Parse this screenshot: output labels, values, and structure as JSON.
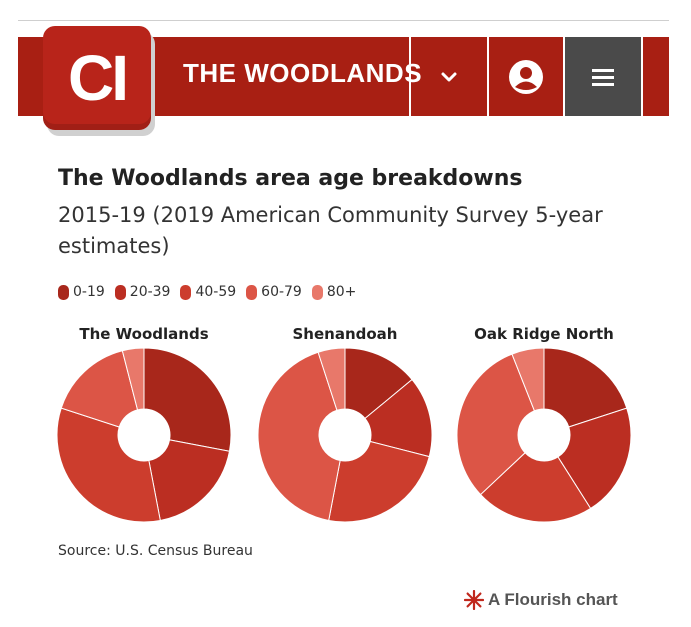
{
  "header": {
    "logo_text": "CI",
    "site_title": "THE WOODLANDS",
    "nav_color": "#a81f13"
  },
  "chart_data": {
    "type": "pie",
    "title": "The Woodlands area age breakdowns",
    "subtitle": "2015-19 (2019 American Community Survey 5-year estimates)",
    "legend": [
      {
        "label": "0-19",
        "color": "#a8271b"
      },
      {
        "label": "20-39",
        "color": "#bb2e22"
      },
      {
        "label": "40-59",
        "color": "#cc3d2d"
      },
      {
        "label": "60-79",
        "color": "#dc5546"
      },
      {
        "label": "80+",
        "color": "#e8786a"
      }
    ],
    "charts": [
      {
        "name": "The Woodlands",
        "values": [
          28,
          19,
          33,
          16,
          4
        ]
      },
      {
        "name": "Shenandoah",
        "values": [
          14,
          15,
          24,
          42,
          5
        ]
      },
      {
        "name": "Oak Ridge North",
        "values": [
          20,
          21,
          22,
          31,
          6
        ]
      }
    ],
    "source": "Source: U.S. Census Bureau",
    "credit": "A Flourish chart"
  }
}
